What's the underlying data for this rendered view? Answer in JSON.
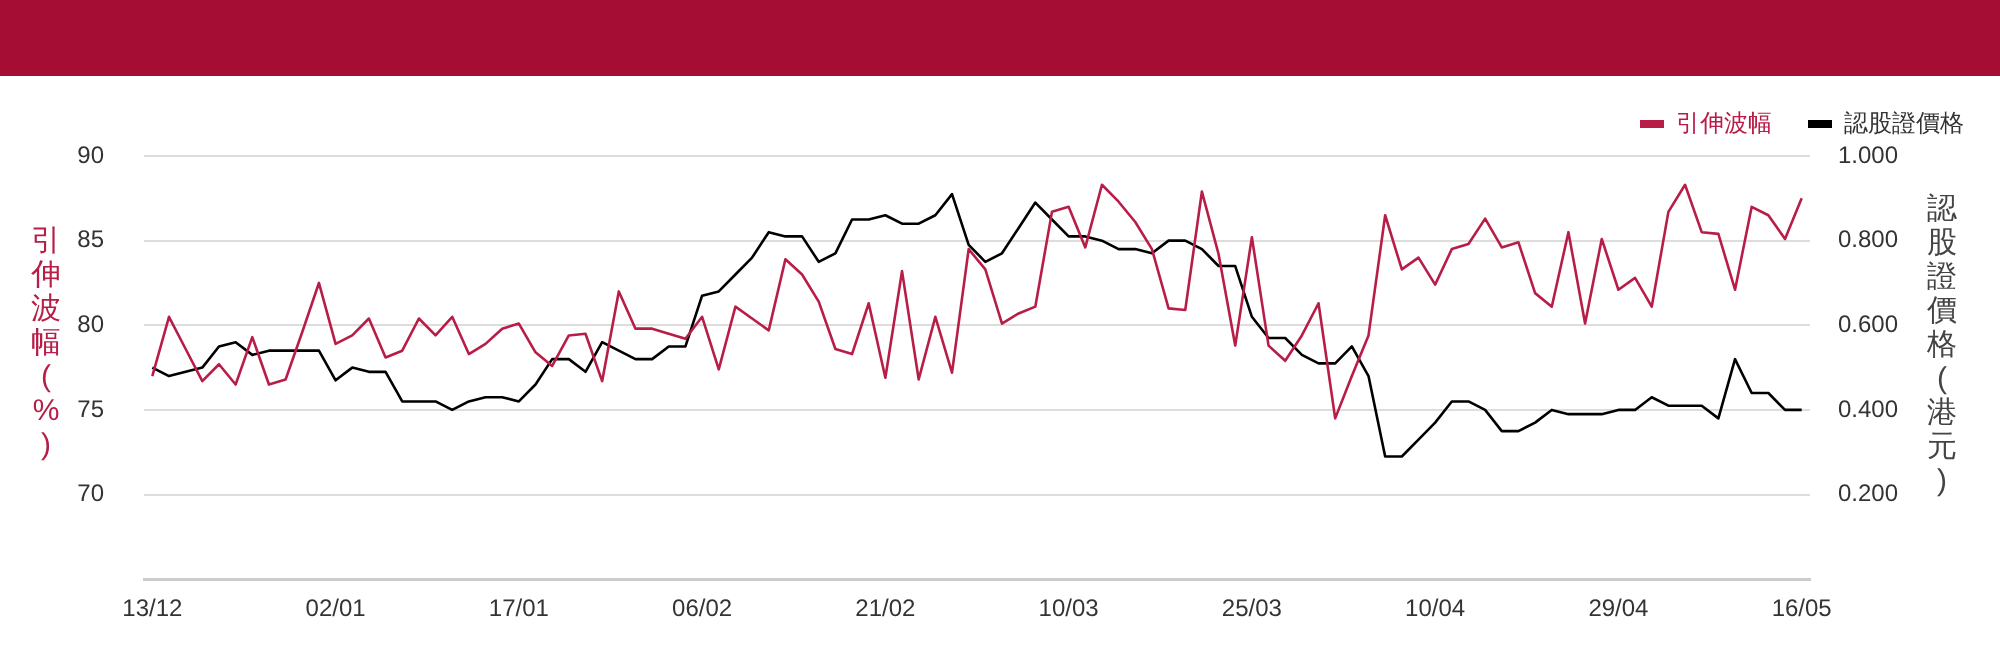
{
  "chart_data": {
    "type": "line",
    "categories": [
      "13/12",
      null,
      null,
      null,
      null,
      null,
      null,
      null,
      null,
      null,
      null,
      "02/01",
      null,
      null,
      null,
      null,
      null,
      null,
      null,
      null,
      null,
      null,
      "17/01",
      null,
      null,
      null,
      null,
      null,
      null,
      null,
      null,
      null,
      null,
      "06/02",
      null,
      null,
      null,
      null,
      null,
      null,
      null,
      null,
      null,
      null,
      "21/02",
      null,
      null,
      null,
      null,
      null,
      null,
      null,
      null,
      null,
      null,
      "10/03",
      null,
      null,
      null,
      null,
      null,
      null,
      null,
      null,
      null,
      null,
      "25/03",
      null,
      null,
      null,
      null,
      null,
      null,
      null,
      null,
      null,
      null,
      "10/04",
      null,
      null,
      null,
      null,
      null,
      null,
      null,
      null,
      null,
      null,
      "29/04",
      null,
      null,
      null,
      null,
      null,
      null,
      null,
      null,
      null,
      null,
      "16/05"
    ],
    "series": [
      {
        "name": "引伸波幅",
        "color": "#b81d47",
        "values": [
          77.0,
          80.5,
          78.6,
          76.7,
          77.7,
          76.5,
          79.3,
          76.5,
          76.8,
          79.6,
          82.5,
          78.9,
          79.4,
          80.4,
          78.1,
          78.5,
          80.4,
          79.4,
          80.5,
          78.3,
          78.9,
          79.8,
          80.1,
          78.4,
          77.6,
          79.4,
          79.5,
          76.7,
          82.0,
          79.8,
          79.8,
          79.5,
          79.2,
          80.5,
          77.4,
          81.1,
          80.4,
          79.7,
          83.9,
          83.0,
          81.4,
          78.6,
          78.3,
          81.3,
          76.9,
          83.2,
          76.8,
          80.5,
          77.2,
          84.5,
          83.3,
          80.1,
          80.7,
          81.1,
          86.7,
          87.0,
          84.6,
          88.3,
          87.3,
          86.1,
          84.5,
          81.0,
          80.9,
          87.9,
          84.2,
          78.8,
          85.2,
          78.8,
          77.9,
          79.4,
          81.3,
          74.5,
          77.0,
          79.4,
          86.5,
          83.3,
          84.0,
          82.4,
          84.5,
          84.8,
          86.3,
          84.6,
          84.9,
          81.9,
          81.1,
          85.5,
          80.1,
          85.1,
          82.1,
          82.8,
          81.1,
          86.7,
          88.3,
          85.5,
          85.4,
          82.1,
          87.0,
          86.5,
          85.1,
          87.5
        ]
      },
      {
        "name": "認股證價格",
        "color": "#000000",
        "axis": "y2",
        "values": [
          0.5,
          0.48,
          0.49,
          0.5,
          0.55,
          0.56,
          0.53,
          0.54,
          0.54,
          0.54,
          0.54,
          0.47,
          0.5,
          0.49,
          0.49,
          0.42,
          0.42,
          0.42,
          0.4,
          0.42,
          0.43,
          0.43,
          0.42,
          0.46,
          0.52,
          0.52,
          0.49,
          0.56,
          0.54,
          0.52,
          0.52,
          0.55,
          0.55,
          0.67,
          0.68,
          0.72,
          0.76,
          0.82,
          0.81,
          0.81,
          0.75,
          0.77,
          0.85,
          0.85,
          0.86,
          0.84,
          0.84,
          0.86,
          0.91,
          0.79,
          0.75,
          0.77,
          0.83,
          0.89,
          0.85,
          0.81,
          0.81,
          0.8,
          0.78,
          0.78,
          0.77,
          0.8,
          0.8,
          0.78,
          0.74,
          0.74,
          0.62,
          0.57,
          0.57,
          0.53,
          0.51,
          0.51,
          0.55,
          0.48,
          0.29,
          0.29,
          0.33,
          0.37,
          0.42,
          0.42,
          0.4,
          0.35,
          0.35,
          0.37,
          0.4,
          0.39,
          0.39,
          0.39,
          0.4,
          0.4,
          0.43,
          0.41,
          0.41,
          0.41,
          0.38,
          0.52,
          0.44,
          0.44,
          0.4,
          0.4
        ]
      }
    ],
    "ylabel": "引伸波幅(%)",
    "y2label": "認股證價格(港元)",
    "ylim": [
      65,
      90
    ],
    "yticks": [
      70,
      75,
      80,
      85,
      90
    ],
    "y2lim": [
      0,
      1
    ],
    "y2ticks": [
      {
        "value": 0.2,
        "label": "0.200"
      },
      {
        "value": 0.4,
        "label": "0.400"
      },
      {
        "value": 0.6,
        "label": "0.600"
      },
      {
        "value": 0.8,
        "label": "0.800"
      },
      {
        "value": 1,
        "label": "1.000"
      }
    ],
    "grid": "y",
    "legend": "top right",
    "marker": "none",
    "line_style": "solid"
  }
}
